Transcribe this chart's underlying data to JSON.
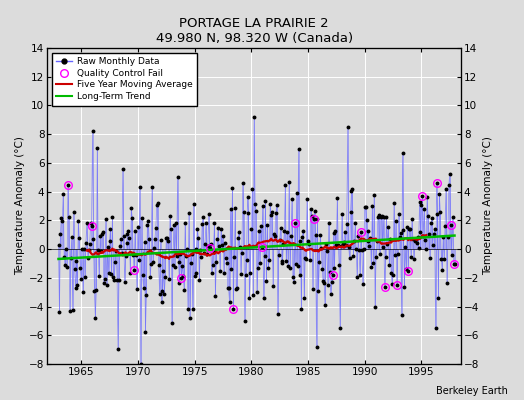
{
  "title": "PORTAGE LA PRAIRIE 2",
  "subtitle": "49.980 N, 98.320 W (Canada)",
  "ylabel": "Temperature Anomaly (°C)",
  "credit": "Berkeley Earth",
  "xlim": [
    1962.0,
    1998.5
  ],
  "ylim": [
    -8,
    14
  ],
  "yticks": [
    -8,
    -6,
    -4,
    -2,
    0,
    2,
    4,
    6,
    8,
    10,
    12,
    14
  ],
  "xticks": [
    1965,
    1970,
    1975,
    1980,
    1985,
    1990,
    1995
  ],
  "bg_color": "#dcdcdc",
  "stem_color": "#6666ff",
  "dot_color": "#000000",
  "moving_avg_color": "#cc0000",
  "trend_color": "#00bb00",
  "qc_color": "#ff00ff",
  "seed": 17,
  "years_start": 1963,
  "years_end": 1997
}
